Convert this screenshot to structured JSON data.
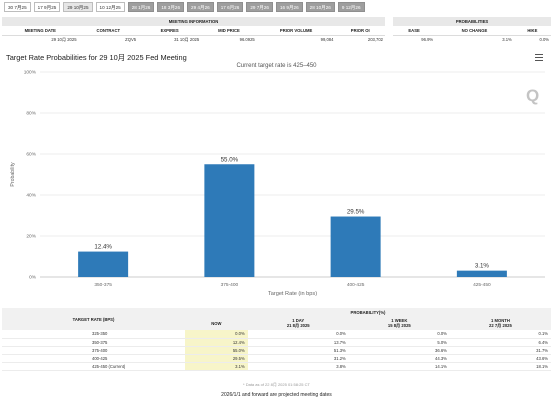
{
  "tabs": [
    {
      "label": "30 7月25",
      "style": "light"
    },
    {
      "label": "17 9月25",
      "style": "light"
    },
    {
      "label": "29 10月25",
      "style": "active"
    },
    {
      "label": "10 12月25",
      "style": "light"
    },
    {
      "label": "28 1月26",
      "style": "dark"
    },
    {
      "label": "18 3月26",
      "style": "dark"
    },
    {
      "label": "29 4月26",
      "style": "dark"
    },
    {
      "label": "17 6月26",
      "style": "dark"
    },
    {
      "label": "29 7月26",
      "style": "dark"
    },
    {
      "label": "16 9月26",
      "style": "dark"
    },
    {
      "label": "28 10月26",
      "style": "dark"
    },
    {
      "label": "9 12月26",
      "style": "dark"
    }
  ],
  "meeting_info": {
    "title": "MEETING INFORMATION",
    "columns": [
      "MEETING DATE",
      "CONTRACT",
      "EXPIRES",
      "MID PRICE",
      "PRIOR VOLUME",
      "PRIOR OI"
    ],
    "values": [
      "29 10月 2025",
      "ZQV5",
      "31 10月 2025",
      "96.0925",
      "99,084",
      "203,702"
    ]
  },
  "probabilities_header": {
    "title": "PROBABILITIES",
    "columns": [
      "EASE",
      "NO CHANGE",
      "HIKE"
    ],
    "values": [
      "96.9%",
      "3.1%",
      "0.0%"
    ]
  },
  "chart": {
    "title": "Target Rate Probabilities for 29 10月 2025 Fed Meeting",
    "subtitle": "Current target rate is 425–450"
  },
  "chart_data": {
    "type": "bar",
    "title": "Target Rate Probabilities for 29 10月 2025 Fed Meeting",
    "subtitle": "Current target rate is 425–450",
    "categories": [
      "350-375",
      "375-400",
      "400-425",
      "425-450"
    ],
    "values": [
      12.4,
      55.0,
      29.5,
      3.1
    ],
    "value_labels": [
      "12.4%",
      "55.0%",
      "29.5%",
      "3.1%"
    ],
    "xlabel": "Target Rate (in bps)",
    "ylabel": "Probability",
    "ylim": [
      0,
      100
    ],
    "yticks": [
      "0%",
      "20%",
      "40%",
      "60%",
      "80%",
      "100%"
    ],
    "bar_color": "#2e7ab8",
    "grid": true,
    "legend": "none"
  },
  "prob_table": {
    "target_rate_header": "TARGET RATE (BPS)",
    "probability_header": "PROBABILITY(%)",
    "columns": [
      {
        "label": "NOW",
        "sub": ""
      },
      {
        "label": "1 DAY",
        "sub": "21 8月 2025"
      },
      {
        "label": "1 WEEK",
        "sub": "15 8月 2025"
      },
      {
        "label": "1 MONTH",
        "sub": "22 7月 2025"
      }
    ],
    "rows": [
      {
        "rate": "325-350",
        "values": [
          "0.0%",
          "0.0%",
          "0.0%",
          "0.1%"
        ]
      },
      {
        "rate": "350-375",
        "values": [
          "12.4%",
          "13.7%",
          "5.0%",
          "6.4%"
        ]
      },
      {
        "rate": "375-400",
        "values": [
          "55.0%",
          "51.3%",
          "36.6%",
          "31.7%"
        ]
      },
      {
        "rate": "400-425",
        "values": [
          "29.5%",
          "31.2%",
          "44.3%",
          "43.6%"
        ]
      },
      {
        "rate": "425-450 (Current)",
        "values": [
          "3.1%",
          "3.8%",
          "14.1%",
          "18.1%"
        ]
      }
    ],
    "now_highlight": "#f7f5c9"
  },
  "updated": "* Data as of 22 8月 2025 01:58:25 CT",
  "footnote": "2026/1/1 and forward are projected meeting dates"
}
